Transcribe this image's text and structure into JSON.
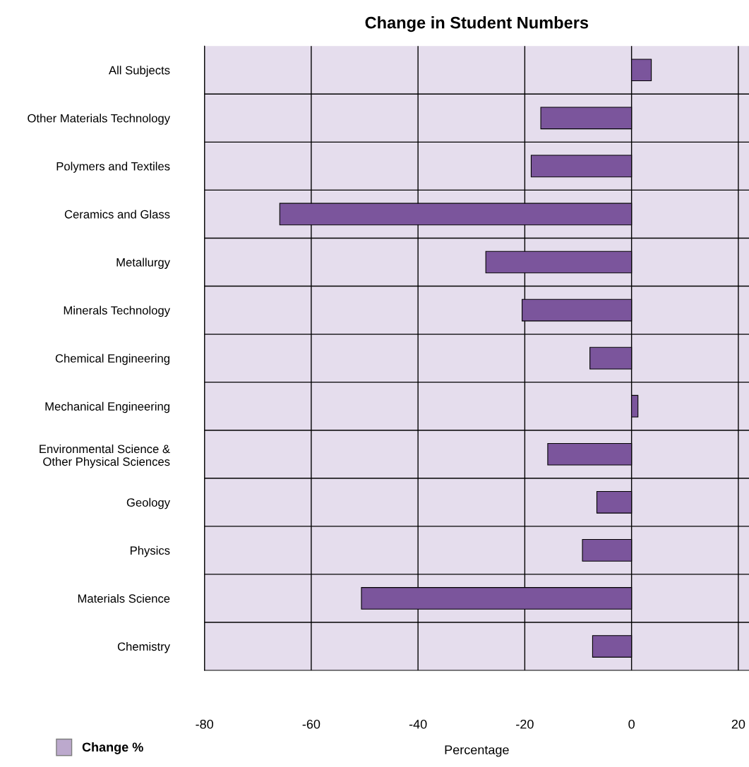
{
  "chart_data": {
    "type": "bar",
    "orientation": "horizontal",
    "title": "Change in Student Numbers",
    "xlabel": "Percentage",
    "categories": [
      "All Subjects",
      "Other Materials Technology",
      "Polymers and Textiles",
      "Ceramics and Glass",
      "Metallurgy",
      "Minerals Technology",
      "Chemical Engineering",
      "Mechanical Engineering",
      "Environmental Science &\nOther Physical Sciences",
      "Geology",
      "Physics",
      "Materials Science",
      "Chemistry"
    ],
    "series": [
      {
        "name": "Change %",
        "color": "#7b559c",
        "values": [
          3.7,
          -17.0,
          -18.8,
          -65.9,
          -27.3,
          -20.5,
          -7.8,
          1.2,
          -15.7,
          -6.5,
          -9.2,
          -50.6,
          -7.3
        ]
      }
    ],
    "xlim": [
      -80,
      22
    ],
    "xticks": [
      -80,
      -60,
      -40,
      -20,
      0,
      20
    ],
    "grid": true,
    "legend": "bottom left"
  }
}
